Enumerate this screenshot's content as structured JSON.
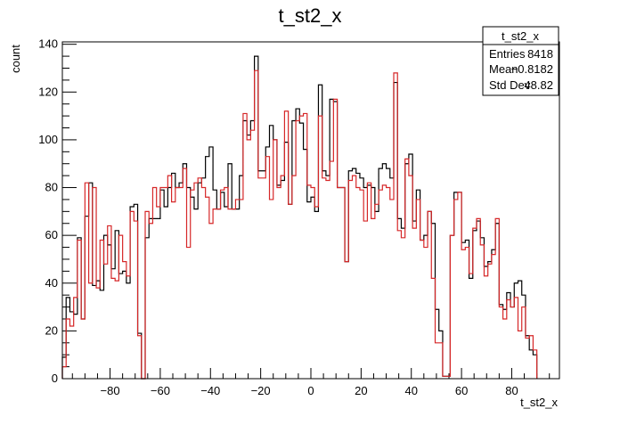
{
  "chart_data": {
    "type": "histogram",
    "title": "t_st2_x",
    "xlabel": "t_st2_x",
    "ylabel": "count",
    "xlim": [
      -99,
      99
    ],
    "ylim": [
      0,
      141
    ],
    "x_ticks": [
      -80,
      -60,
      -40,
      -20,
      0,
      20,
      40,
      60,
      80
    ],
    "y_ticks": [
      0,
      20,
      40,
      60,
      80,
      100,
      120,
      140
    ],
    "grid": false,
    "bin_width": 1.5,
    "series": [
      {
        "color": "#000000",
        "x_start": -99,
        "values": [
          9,
          34,
          28,
          27,
          59,
          25,
          68,
          82,
          39,
          41,
          37,
          60,
          56,
          46,
          62,
          44,
          45,
          40,
          72,
          73,
          19,
          0,
          59,
          67,
          67,
          67,
          79,
          72,
          80,
          86,
          80,
          82,
          90,
          80,
          76,
          71,
          82,
          84,
          93,
          97,
          79,
          71,
          78,
          72,
          90,
          71,
          71,
          85,
          108,
          102,
          108,
          135,
          87,
          87,
          97,
          106,
          100,
          81,
          83,
          99,
          73,
          108,
          113,
          107,
          96,
          74,
          76,
          70,
          123,
          87,
          85,
          117,
          116,
          80,
          80,
          49,
          87,
          88,
          86,
          84,
          80,
          81,
          80,
          70,
          88,
          90,
          88,
          84,
          124,
          67,
          63,
          90,
          94,
          66,
          79,
          58,
          60,
          70,
          65,
          29,
          20,
          1,
          1,
          60,
          78,
          78,
          57,
          58,
          42,
          62,
          66,
          59,
          47,
          49,
          54,
          65,
          31,
          29,
          36,
          30,
          40,
          41,
          35,
          18,
          12,
          10
        ]
      },
      {
        "color": "#d62728",
        "x_start": -99,
        "values": [
          5,
          25,
          22,
          34,
          58,
          25,
          82,
          40,
          80,
          38,
          58,
          48,
          64,
          42,
          41,
          60,
          49,
          43,
          70,
          66,
          18,
          0,
          70,
          65,
          80,
          72,
          80,
          80,
          85,
          74,
          80,
          80,
          88,
          55,
          79,
          82,
          84,
          80,
          76,
          65,
          71,
          71,
          79,
          80,
          71,
          71,
          75,
          75,
          111,
          100,
          104,
          129,
          84,
          84,
          93,
          75,
          100,
          80,
          85,
          112,
          73,
          85,
          108,
          110,
          111,
          81,
          80,
          72,
          110,
          84,
          83,
          91,
          117,
          80,
          80,
          49,
          83,
          85,
          80,
          79,
          66,
          82,
          67,
          73,
          79,
          81,
          80,
          75,
          128,
          62,
          59,
          92,
          85,
          63,
          75,
          58,
          55,
          70,
          42,
          15,
          15,
          1,
          1,
          60,
          75,
          78,
          54,
          55,
          44,
          63,
          67,
          56,
          43,
          48,
          52,
          67,
          30,
          25,
          33,
          30,
          34,
          20,
          30,
          17,
          18,
          12
        ]
      }
    ],
    "stats": {
      "title": "t_st2_x",
      "rows": [
        {
          "label": "Entries",
          "value": "8418"
        },
        {
          "label": "Mean",
          "value": "−0.8182"
        },
        {
          "label": "Std Dev",
          "value": "48.82"
        }
      ]
    }
  }
}
